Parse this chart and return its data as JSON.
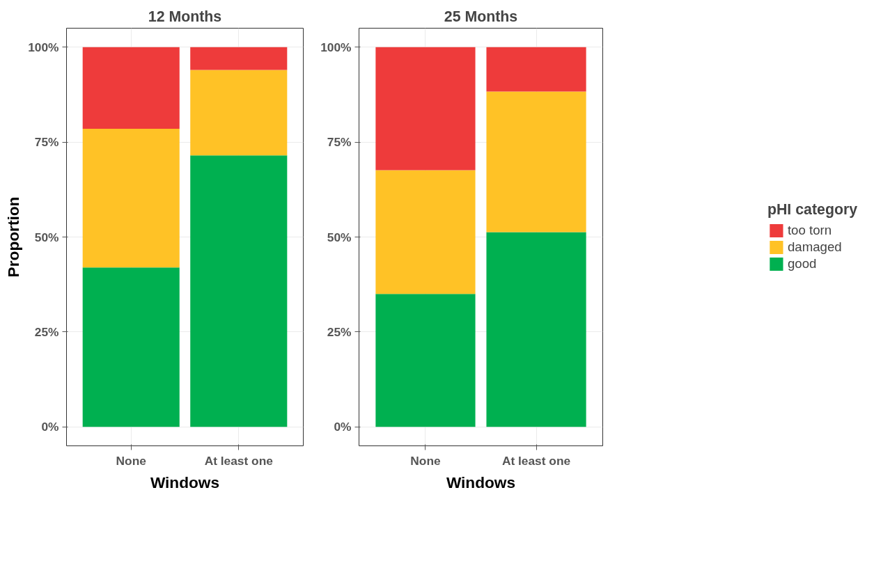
{
  "chart_data": [
    {
      "type": "bar",
      "stacked": true,
      "title": "12 Months",
      "xlabel": "Windows",
      "ylabel": "Proportion",
      "categories": [
        "None",
        "At least one"
      ],
      "series": [
        {
          "color": "#00b050",
          "values": [
            42,
            71.5
          ]
        },
        {
          "color": "#ffc226",
          "values": [
            36.5,
            22.5
          ]
        },
        {
          "color": "#ee3b3b",
          "values": [
            21.5,
            6
          ]
        }
      ],
      "ylim": [
        -5,
        105
      ],
      "yticks": [
        {
          "value": 0,
          "label": "0%"
        },
        {
          "value": 25,
          "label": "25%"
        },
        {
          "value": 50,
          "label": "50%"
        },
        {
          "value": 75,
          "label": "75%"
        },
        {
          "value": 100,
          "label": "100%"
        }
      ],
      "grid": true,
      "legend": false
    },
    {
      "type": "bar",
      "stacked": true,
      "title": "25 Months",
      "xlabel": "Windows",
      "categories": [
        "None",
        "At least one"
      ],
      "legend_title": "pHI category",
      "series": [
        {
          "name": "good",
          "color": "#00b050",
          "values": [
            35,
            51.3
          ]
        },
        {
          "name": "damaged",
          "color": "#ffc226",
          "values": [
            32.6,
            37
          ]
        },
        {
          "name": "too torn",
          "color": "#ee3b3b",
          "values": [
            32.4,
            11.7
          ]
        }
      ],
      "ylim": [
        -5,
        105
      ],
      "yticks": [
        {
          "value": 0,
          "label": "0%"
        },
        {
          "value": 25,
          "label": "25%"
        },
        {
          "value": 50,
          "label": "50%"
        },
        {
          "value": 75,
          "label": "75%"
        },
        {
          "value": 100,
          "label": "100%"
        }
      ],
      "grid": true,
      "legend": "right"
    }
  ]
}
